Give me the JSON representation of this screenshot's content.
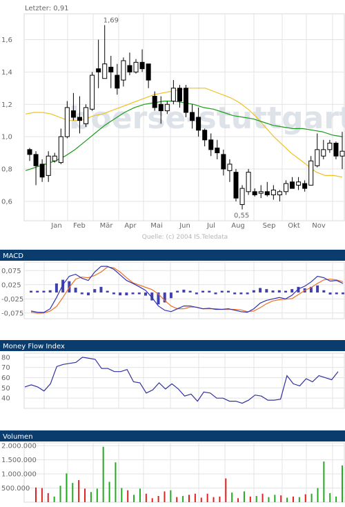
{
  "header": {
    "last_label": "Letzter: 0,91"
  },
  "watermark": "boerse-stuttgart",
  "source": "Quelle: (c) 2004 IS.Teledata",
  "colors": {
    "panel_header": "#0a3c6e",
    "ma_short": "#f0c020",
    "ma_long": "#1a9a1a",
    "macd_line": "#3030b0",
    "signal_line": "#f07020",
    "histogram": "#4040b0",
    "mfi_line": "#3030a0",
    "vol_up": "#22aa22",
    "vol_down": "#dd2222"
  },
  "chart_data": [
    {
      "type": "candlestick",
      "months": [
        "Jan",
        "Feb",
        "Mär",
        "Apr",
        "Mai",
        "Jun",
        "Jul",
        "Aug",
        "Sep",
        "Okt",
        "Nov"
      ],
      "yticks": [
        "0,6",
        "0,8",
        "1,0",
        "1,2",
        "1,4",
        "1,6"
      ],
      "ylim": [
        0.48,
        1.76
      ],
      "annotations": {
        "high": "1,69",
        "low": "0,55"
      },
      "candles": [
        [
          0.92,
          0.93,
          0.85,
          0.89
        ],
        [
          0.89,
          0.91,
          0.7,
          0.82
        ],
        [
          0.83,
          0.86,
          0.72,
          0.75
        ],
        [
          0.76,
          0.91,
          0.72,
          0.88
        ],
        [
          0.85,
          0.9,
          0.84,
          0.88
        ],
        [
          0.84,
          1.05,
          0.83,
          1.0
        ],
        [
          1.0,
          1.22,
          0.99,
          1.18
        ],
        [
          1.16,
          1.27,
          1.1,
          1.12
        ],
        [
          1.12,
          1.25,
          1.02,
          1.1
        ],
        [
          1.08,
          1.2,
          1.06,
          1.18
        ],
        [
          1.17,
          1.4,
          1.16,
          1.38
        ],
        [
          1.42,
          1.6,
          1.3,
          1.4
        ],
        [
          1.36,
          1.69,
          1.36,
          1.45
        ],
        [
          1.43,
          1.5,
          1.3,
          1.4
        ],
        [
          1.38,
          1.45,
          1.26,
          1.3
        ],
        [
          1.35,
          1.49,
          1.31,
          1.47
        ],
        [
          1.44,
          1.52,
          1.38,
          1.4
        ],
        [
          1.4,
          1.48,
          1.39,
          1.46
        ],
        [
          1.46,
          1.54,
          1.4,
          1.42
        ],
        [
          1.45,
          1.45,
          1.3,
          1.35
        ],
        [
          1.25,
          1.28,
          1.16,
          1.18
        ],
        [
          1.2,
          1.25,
          1.08,
          1.16
        ],
        [
          1.16,
          1.22,
          1.14,
          1.2
        ],
        [
          1.22,
          1.35,
          1.2,
          1.3
        ],
        [
          1.3,
          1.32,
          1.18,
          1.22
        ],
        [
          1.3,
          1.32,
          1.12,
          1.15
        ],
        [
          1.15,
          1.2,
          1.05,
          1.1
        ],
        [
          1.12,
          1.18,
          1.0,
          1.04
        ],
        [
          1.04,
          1.05,
          0.94,
          0.98
        ],
        [
          0.98,
          1.02,
          0.88,
          0.92
        ],
        [
          0.93,
          0.98,
          0.86,
          0.9
        ],
        [
          0.89,
          0.92,
          0.76,
          0.8
        ],
        [
          0.79,
          0.86,
          0.72,
          0.83
        ],
        [
          0.78,
          0.8,
          0.6,
          0.62
        ],
        [
          0.58,
          0.7,
          0.55,
          0.68
        ],
        [
          0.66,
          0.8,
          0.64,
          0.78
        ],
        [
          0.66,
          0.68,
          0.63,
          0.64
        ],
        [
          0.65,
          0.7,
          0.62,
          0.66
        ],
        [
          0.66,
          0.72,
          0.63,
          0.64
        ],
        [
          0.64,
          0.7,
          0.61,
          0.67
        ],
        [
          0.64,
          0.67,
          0.6,
          0.66
        ],
        [
          0.66,
          0.73,
          0.64,
          0.71
        ],
        [
          0.72,
          0.75,
          0.68,
          0.68
        ],
        [
          0.7,
          0.75,
          0.67,
          0.72
        ],
        [
          0.71,
          0.73,
          0.66,
          0.68
        ],
        [
          0.7,
          0.88,
          0.7,
          0.85
        ],
        [
          0.82,
          1.02,
          0.81,
          0.92
        ],
        [
          0.88,
          0.98,
          0.86,
          0.92
        ],
        [
          0.92,
          0.98,
          0.9,
          0.96
        ],
        [
          0.96,
          0.97,
          0.86,
          0.88
        ],
        [
          0.88,
          1.03,
          0.8,
          0.91
        ]
      ],
      "ma_short": [
        1.14,
        1.15,
        1.15,
        1.14,
        1.12,
        1.1,
        1.1,
        1.11,
        1.13,
        1.14,
        1.16,
        1.18,
        1.2,
        1.22,
        1.24,
        1.26,
        1.27,
        1.28,
        1.29,
        1.3,
        1.3,
        1.3,
        1.28,
        1.26,
        1.24,
        1.21,
        1.17,
        1.12,
        1.06,
        1.0,
        0.95,
        0.9,
        0.86,
        0.82,
        0.78,
        0.76,
        0.76,
        0.75
      ],
      "ma_long": [
        0.79,
        0.81,
        0.83,
        0.85,
        0.88,
        0.92,
        0.97,
        1.02,
        1.07,
        1.11,
        1.15,
        1.18,
        1.2,
        1.21,
        1.22,
        1.22,
        1.21,
        1.2,
        1.18,
        1.17,
        1.15,
        1.13,
        1.12,
        1.11,
        1.09,
        1.07,
        1.06,
        1.05,
        1.05,
        1.04,
        1.03,
        1.01,
        1.0
      ],
      "ma_short_start": 0,
      "ma_long_start": 0
    },
    {
      "type": "line",
      "title": "MACD",
      "yticks": [
        "0,075",
        "0,025",
        "-0,025",
        "-0,075"
      ],
      "ytick_values": [
        0.075,
        0.025,
        -0.025,
        -0.075
      ],
      "ylim": [
        -0.095,
        0.105
      ],
      "macd": [
        -0.068,
        -0.072,
        -0.073,
        -0.06,
        -0.02,
        0.025,
        0.055,
        0.062,
        0.048,
        0.04,
        0.07,
        0.09,
        0.09,
        0.08,
        0.06,
        0.04,
        0.03,
        0.018,
        0.005,
        -0.02,
        -0.05,
        -0.065,
        -0.07,
        -0.06,
        -0.05,
        -0.05,
        -0.055,
        -0.06,
        -0.058,
        -0.062,
        -0.062,
        -0.06,
        -0.065,
        -0.07,
        -0.072,
        -0.06,
        -0.04,
        -0.03,
        -0.025,
        -0.02,
        -0.025,
        -0.012,
        0.01,
        0.02,
        0.035,
        0.055,
        0.05,
        0.038,
        0.04,
        0.03
      ],
      "signal": [
        -0.072,
        -0.076,
        -0.075,
        -0.068,
        -0.052,
        -0.02,
        0.015,
        0.045,
        0.052,
        0.05,
        0.058,
        0.07,
        0.088,
        0.085,
        0.07,
        0.05,
        0.032,
        0.024,
        0.016,
        0.008,
        -0.008,
        -0.03,
        -0.05,
        -0.06,
        -0.06,
        -0.054,
        -0.054,
        -0.06,
        -0.06,
        -0.06,
        -0.062,
        -0.062,
        -0.062,
        -0.064,
        -0.07,
        -0.068,
        -0.056,
        -0.042,
        -0.032,
        -0.028,
        -0.026,
        -0.024,
        -0.01,
        0.005,
        0.015,
        0.03,
        0.042,
        0.045,
        0.042,
        0.036
      ],
      "histogram": [
        0.004,
        0.004,
        0.002,
        0.008,
        0.032,
        0.045,
        0.04,
        0.017,
        -0.004,
        -0.01,
        0.012,
        0.02,
        0.002,
        -0.005,
        -0.01,
        -0.01,
        -0.002,
        -0.006,
        -0.011,
        -0.028,
        -0.042,
        -0.035,
        -0.02,
        0.0,
        0.01,
        0.004,
        -0.001,
        0.0,
        0.002,
        -0.002,
        0.0,
        0.002,
        -0.003,
        -0.006,
        -0.002,
        0.008,
        0.016,
        0.012,
        0.007,
        0.008,
        0.001,
        0.012,
        0.02,
        0.015,
        0.02,
        0.025,
        0.008,
        -0.007,
        -0.002,
        -0.006
      ]
    },
    {
      "type": "line",
      "title": "Money Flow Index",
      "yticks": [
        "80",
        "70",
        "60",
        "50",
        "40"
      ],
      "ytick_values": [
        80,
        70,
        60,
        50,
        40
      ],
      "ylim": [
        30,
        84
      ],
      "values": [
        51,
        53,
        51,
        47,
        54,
        71,
        73,
        74,
        75,
        80,
        79,
        78,
        69,
        69,
        66,
        66,
        68,
        56,
        55,
        45,
        48,
        55,
        49,
        54,
        49,
        42,
        44,
        37,
        46,
        45,
        40,
        40,
        37,
        37,
        35,
        38,
        43,
        42,
        38,
        38,
        39,
        62,
        54,
        52,
        59,
        56,
        62,
        60,
        58,
        66
      ]
    },
    {
      "type": "bar",
      "title": "Volumen",
      "yticks": [
        "2.000.000",
        "1.500.000",
        "1.000.000",
        "500.000"
      ],
      "ytick_values": [
        2000000,
        1500000,
        1000000,
        500000
      ],
      "ylim": [
        0,
        2100000
      ],
      "volumes": [
        520000,
        500000,
        320000,
        200000,
        580000,
        1020000,
        680000,
        780000,
        480000,
        360000,
        480000,
        1960000,
        720000,
        1410000,
        500000,
        420000,
        260000,
        480000,
        300000,
        140000,
        220000,
        380000,
        420000,
        180000,
        220000,
        260000,
        300000,
        160000,
        300000,
        180000,
        200000,
        840000,
        340000,
        140000,
        380000,
        200000,
        220000,
        300000,
        180000,
        260000,
        240000,
        160000,
        200000,
        180000,
        280000,
        300000,
        500000,
        1440000,
        320000,
        200000,
        1300000
      ],
      "up": [
        0,
        0,
        0,
        1,
        1,
        1,
        1,
        0,
        0,
        1,
        1,
        1,
        1,
        1,
        1,
        0,
        1,
        1,
        0,
        0,
        0,
        0,
        1,
        0,
        1,
        0,
        0,
        0,
        0,
        0,
        0,
        0,
        1,
        0,
        1,
        0,
        1,
        0,
        1,
        1,
        0,
        1,
        0,
        1,
        0,
        1,
        1,
        1,
        1,
        1,
        1
      ]
    }
  ]
}
